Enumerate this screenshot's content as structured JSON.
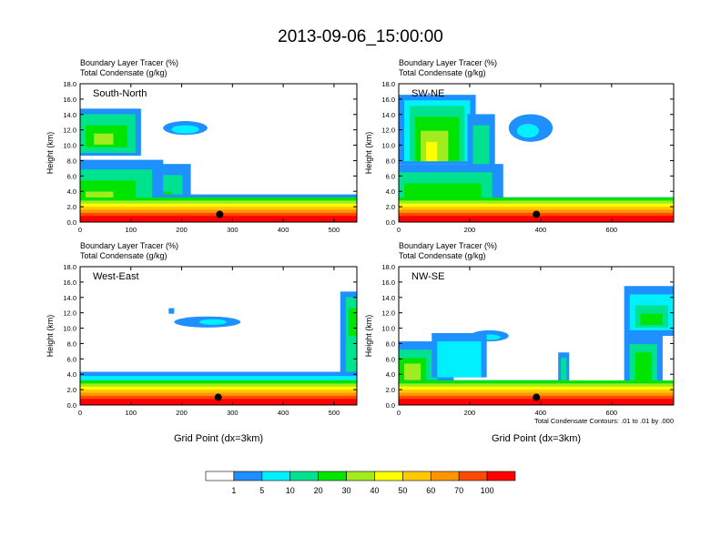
{
  "figure": {
    "title": "2013-09-06_15:00:00"
  },
  "chart_data": {
    "type": "heatmap",
    "panels": [
      {
        "header": [
          "Boundary Layer Tracer   (%)",
          "Total Condensate   (g/kg)"
        ],
        "label": "South-North",
        "ylabel": "Height (km)",
        "xlabel": "",
        "xlim": [
          0,
          545
        ],
        "ylim": [
          0,
          18
        ],
        "xticks": [
          0,
          100,
          200,
          300,
          400,
          500
        ],
        "yticks": [
          0,
          2,
          4,
          6,
          8,
          10,
          12,
          14,
          16,
          18
        ],
        "ytick_labels": [
          "0.0",
          "2.0",
          "4.0",
          "6.0",
          "8.0",
          "10.0",
          "12.0",
          "14.0",
          "16.0",
          "18.0"
        ],
        "marker": {
          "x": 275,
          "y": 1.0
        },
        "footnote": ""
      },
      {
        "header": [
          "Boundary Layer Tracer   (%)",
          "Total Condensate   (g/kg)"
        ],
        "label": "SW-NE",
        "ylabel": "Height (km)",
        "xlabel": "",
        "xlim": [
          0,
          775
        ],
        "ylim": [
          0,
          18
        ],
        "xticks": [
          0,
          200,
          400,
          600
        ],
        "yticks": [
          0,
          2,
          4,
          6,
          8,
          10,
          12,
          14,
          16,
          18
        ],
        "ytick_labels": [
          "0.0",
          "2.0",
          "4.0",
          "6.0",
          "8.0",
          "10.0",
          "12.0",
          "14.0",
          "16.0",
          "18.0"
        ],
        "marker": {
          "x": 388,
          "y": 1.0
        },
        "footnote": ""
      },
      {
        "header": [
          "Boundary Layer Tracer   (%)",
          "Total Condensate   (g/kg)"
        ],
        "label": "West-East",
        "ylabel": "Height (km)",
        "xlabel": "Grid Point (dx=3km)",
        "xlim": [
          0,
          545
        ],
        "ylim": [
          0,
          18
        ],
        "xticks": [
          0,
          100,
          200,
          300,
          400,
          500
        ],
        "yticks": [
          0,
          2,
          4,
          6,
          8,
          10,
          12,
          14,
          16,
          18
        ],
        "ytick_labels": [
          "0.0",
          "2.0",
          "4.0",
          "6.0",
          "8.0",
          "10.0",
          "12.0",
          "14.0",
          "16.0",
          "18.0"
        ],
        "marker": {
          "x": 272,
          "y": 1.0
        },
        "footnote": ""
      },
      {
        "header": [
          "Boundary Layer Tracer   (%)",
          "Total Condensate   (g/kg)"
        ],
        "label": "NW-SE",
        "ylabel": "Height (km)",
        "xlabel": "Grid Point (dx=3km)",
        "xlim": [
          0,
          775
        ],
        "ylim": [
          0,
          18
        ],
        "xticks": [
          0,
          200,
          400,
          600
        ],
        "yticks": [
          0,
          2,
          4,
          6,
          8,
          10,
          12,
          14,
          16,
          18
        ],
        "ytick_labels": [
          "0.0",
          "2.0",
          "4.0",
          "6.0",
          "8.0",
          "10.0",
          "12.0",
          "14.0",
          "16.0",
          "18.0"
        ],
        "marker": {
          "x": 388,
          "y": 1.0
        },
        "footnote": "Total Condensate Contours: .01 to .01 by .000"
      }
    ],
    "colorbar": {
      "levels": [
        "1",
        "5",
        "10",
        "20",
        "30",
        "40",
        "50",
        "60",
        "70",
        "100"
      ],
      "colors": [
        "#ffffff",
        "#1e90ff",
        "#00f0ff",
        "#00e28f",
        "#00e400",
        "#a0ec1e",
        "#ffff00",
        "#ffc800",
        "#ff9600",
        "#ff4b00",
        "#ff0000"
      ]
    },
    "colors": {
      "c0": "#ffffff",
      "c1": "#1e90ff",
      "c2": "#00f0ff",
      "c3": "#00e28f",
      "c4": "#00e400",
      "c5": "#a0ec1e",
      "c6": "#ffff00",
      "c7": "#ffc800",
      "c8": "#ff9600",
      "c9": "#ff4b00",
      "c10": "#ff0000"
    }
  }
}
